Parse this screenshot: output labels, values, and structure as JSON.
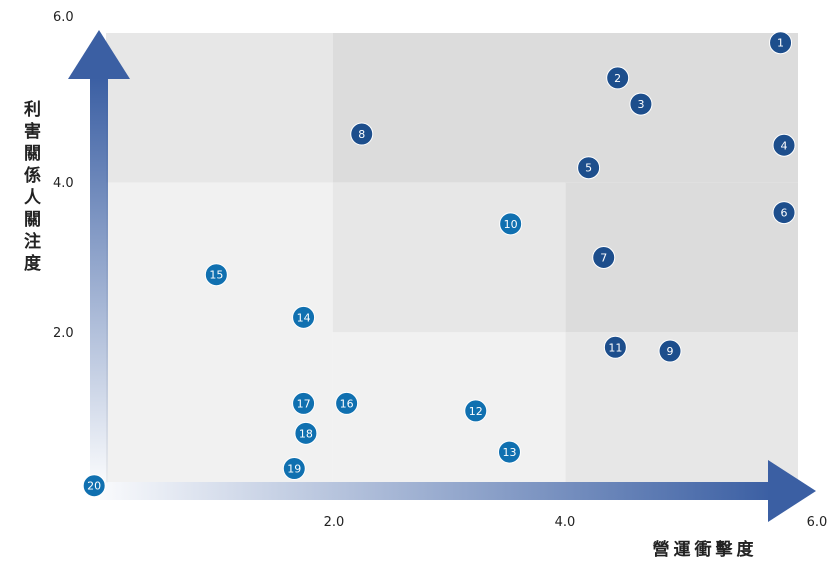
{
  "chart_data": {
    "type": "scatter",
    "xlabel": "營運衝擊度",
    "ylabel": "利害關係人關注度",
    "xlim": [
      0,
      6
    ],
    "ylim": [
      0,
      6
    ],
    "x_ticks": [
      "2.0",
      "4.0",
      "6.0"
    ],
    "y_ticks": [
      "2.0",
      "4.0",
      "6.0"
    ],
    "grid": false,
    "zones": [
      {
        "x": [
          2,
          6
        ],
        "y": [
          4,
          6
        ],
        "color": "#dcdcdc"
      },
      {
        "x": [
          4,
          6
        ],
        "y": [
          2,
          4
        ],
        "color": "#dcdcdc"
      },
      {
        "x": [
          0,
          2
        ],
        "y": [
          4,
          6
        ],
        "color": "#e7e7e7"
      },
      {
        "x": [
          2,
          4
        ],
        "y": [
          2,
          4
        ],
        "color": "#e7e7e7"
      },
      {
        "x": [
          4,
          6
        ],
        "y": [
          0,
          2
        ],
        "color": "#e7e7e7"
      },
      {
        "x": [
          0,
          2
        ],
        "y": [
          0,
          4
        ],
        "color": "#f1f1f1"
      },
      {
        "x": [
          2,
          4
        ],
        "y": [
          0,
          2
        ],
        "color": "#f1f1f1"
      }
    ],
    "points": [
      {
        "label": "1",
        "x": 5.85,
        "y": 5.87,
        "color": "#1d4e8c"
      },
      {
        "label": "2",
        "x": 4.45,
        "y": 5.4,
        "color": "#1d4e8c"
      },
      {
        "label": "3",
        "x": 4.65,
        "y": 5.05,
        "color": "#1d4e8c"
      },
      {
        "label": "4",
        "x": 5.88,
        "y": 4.5,
        "color": "#1d4e8c"
      },
      {
        "label": "5",
        "x": 4.2,
        "y": 4.2,
        "color": "#1d4e8c"
      },
      {
        "label": "6",
        "x": 5.88,
        "y": 3.6,
        "color": "#1d4e8c"
      },
      {
        "label": "7",
        "x": 4.33,
        "y": 3.0,
        "color": "#1d4e8c"
      },
      {
        "label": "8",
        "x": 2.25,
        "y": 4.65,
        "color": "#1d4e8c"
      },
      {
        "label": "9",
        "x": 4.9,
        "y": 1.75,
        "color": "#1d4e8c"
      },
      {
        "label": "10",
        "x": 3.53,
        "y": 3.45,
        "color": "#1070b0"
      },
      {
        "label": "11",
        "x": 4.43,
        "y": 1.8,
        "color": "#1d4e8c"
      },
      {
        "label": "12",
        "x": 3.23,
        "y": 0.95,
        "color": "#1070b0"
      },
      {
        "label": "13",
        "x": 3.52,
        "y": 0.4,
        "color": "#1070b0"
      },
      {
        "label": "14",
        "x": 1.75,
        "y": 2.2,
        "color": "#1070b0"
      },
      {
        "label": "15",
        "x": 1.0,
        "y": 2.77,
        "color": "#1070b0"
      },
      {
        "label": "16",
        "x": 2.12,
        "y": 1.05,
        "color": "#1070b0"
      },
      {
        "label": "17",
        "x": 1.75,
        "y": 1.05,
        "color": "#1070b0"
      },
      {
        "label": "18",
        "x": 1.77,
        "y": 0.65,
        "color": "#1070b0"
      },
      {
        "label": "19",
        "x": 1.67,
        "y": 0.18,
        "color": "#1070b0"
      },
      {
        "label": "20",
        "x": -0.05,
        "y": -0.05,
        "color": "#1070b0"
      }
    ]
  }
}
